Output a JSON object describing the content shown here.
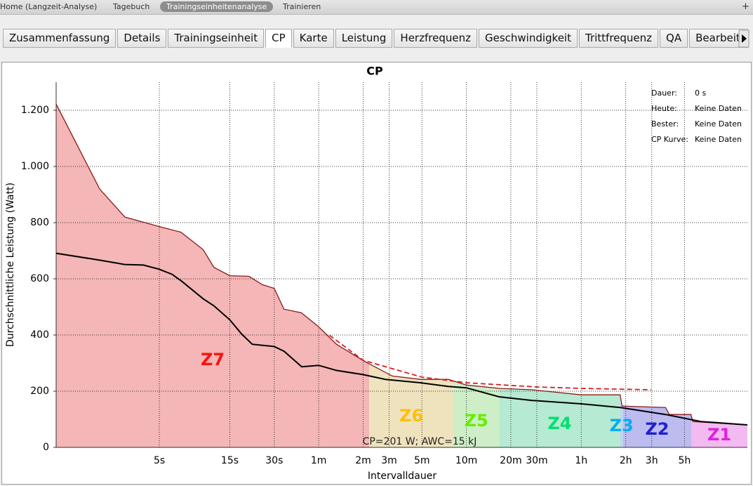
{
  "menu": {
    "items": [
      "Home (Langzeit-Analyse)",
      "Tagebuch",
      "Trainingseinheitenanalyse",
      "Trainieren"
    ],
    "selected": 2,
    "plus": "+"
  },
  "tabs": {
    "items": [
      "Zusammenfassung",
      "Details",
      "Trainingseinheit",
      "CP",
      "Karte",
      "Leistung",
      "Herzfrequenz",
      "Geschwindigkeit",
      "Trittfrequenz",
      "QA",
      "Bearbeiten"
    ],
    "selected": 3
  },
  "chart_data": {
    "type": "line",
    "title": "CP",
    "xlabel": "Intervalldauer",
    "ylabel": "Durchschnittliche Leistung (Watt)",
    "xscale": "log",
    "xlim": [
      1,
      48000
    ],
    "ylim": [
      0,
      1300
    ],
    "grid": true,
    "xticks": [
      {
        "value": 5,
        "label": "5s"
      },
      {
        "value": 15,
        "label": "15s"
      },
      {
        "value": 30,
        "label": "30s"
      },
      {
        "value": 60,
        "label": "1m"
      },
      {
        "value": 120,
        "label": "2m"
      },
      {
        "value": 180,
        "label": "3m"
      },
      {
        "value": 300,
        "label": "5m"
      },
      {
        "value": 600,
        "label": "10m"
      },
      {
        "value": 1200,
        "label": "20m"
      },
      {
        "value": 1800,
        "label": "30m"
      },
      {
        "value": 3600,
        "label": "1h"
      },
      {
        "value": 7200,
        "label": "2h"
      },
      {
        "value": 10800,
        "label": "3h"
      },
      {
        "value": 18000,
        "label": "5h"
      }
    ],
    "yticks": [
      0,
      200,
      400,
      600,
      800,
      {
        "value": 1000,
        "label": "1.000"
      },
      {
        "value": 1200,
        "label": "1.200"
      }
    ],
    "series": [
      {
        "color": "#8b1a1a",
        "fill": true,
        "x": [
          1,
          1.97,
          2.92,
          5,
          7,
          9.9,
          11.7,
          15,
          20.2,
          25,
          30,
          34.9,
          45.8,
          60,
          79.2,
          120,
          189,
          293,
          453,
          600,
          1000,
          1680,
          3600,
          6600,
          6800,
          13400,
          14200,
          19900,
          20500,
          48000
        ],
        "values": [
          1222,
          920,
          820,
          786,
          766,
          704,
          641,
          611,
          609,
          579,
          566,
          492,
          479,
          429,
          367,
          309,
          254,
          242,
          242,
          222,
          210,
          205,
          187,
          187,
          147,
          142,
          117,
          117,
          92,
          80
        ]
      },
      {
        "color": "#000000",
        "x": [
          1,
          2,
          2.92,
          3.9,
          5,
          6.1,
          7.1,
          9.9,
          11.7,
          15,
          18,
          21.3,
          30,
          35,
          46,
          60,
          79,
          120,
          170,
          293,
          453,
          600,
          1000,
          1680,
          3600,
          6600,
          13400,
          23300,
          48000
        ],
        "values": [
          691,
          666,
          651,
          649,
          634,
          616,
          591,
          529,
          504,
          454,
          404,
          367,
          359,
          342,
          287,
          292,
          274,
          259,
          242,
          230,
          217,
          212,
          180,
          167,
          155,
          142,
          117,
          92,
          80
        ]
      },
      {
        "color": "#d02020",
        "dashed": true,
        "x": [
          71,
          120,
          300,
          600,
          1800,
          3600,
          10700
        ],
        "values": [
          399,
          310,
          250,
          230,
          215,
          210,
          205
        ]
      }
    ],
    "zones": [
      {
        "name": "Z7",
        "color": "#ff1010",
        "fill": "#f4b6b6",
        "from": 1,
        "to": 132
      },
      {
        "name": "Z6",
        "color": "#ffc000",
        "fill": "#efe3be",
        "from": 132,
        "to": 490
      },
      {
        "name": "Z5",
        "color": "#66ee00",
        "fill": "#cdeec6",
        "from": 490,
        "to": 1000
      },
      {
        "name": "Z4",
        "color": "#00e070",
        "fill": "#b6ead2",
        "from": 1000,
        "to": 6600
      },
      {
        "name": "Z3",
        "color": "#00b0f0",
        "fill": "#bcd6f2",
        "from": 6600,
        "to": 6900
      },
      {
        "name": "Z2",
        "color": "#2020d0",
        "fill": "#bcbcf0",
        "from": 6900,
        "to": 20000
      },
      {
        "name": "Z1",
        "color": "#e020e0",
        "fill": "#f2baf0",
        "from": 20000,
        "to": 48000
      }
    ],
    "annotation": "CP=201 W; AWC=15 kJ",
    "info": [
      [
        "Dauer:",
        "0 s"
      ],
      [
        "Heute:",
        "Keine Daten"
      ],
      [
        "Bester:",
        "Keine Daten"
      ],
      [
        "CP Kurve:",
        "Keine Daten"
      ]
    ]
  }
}
